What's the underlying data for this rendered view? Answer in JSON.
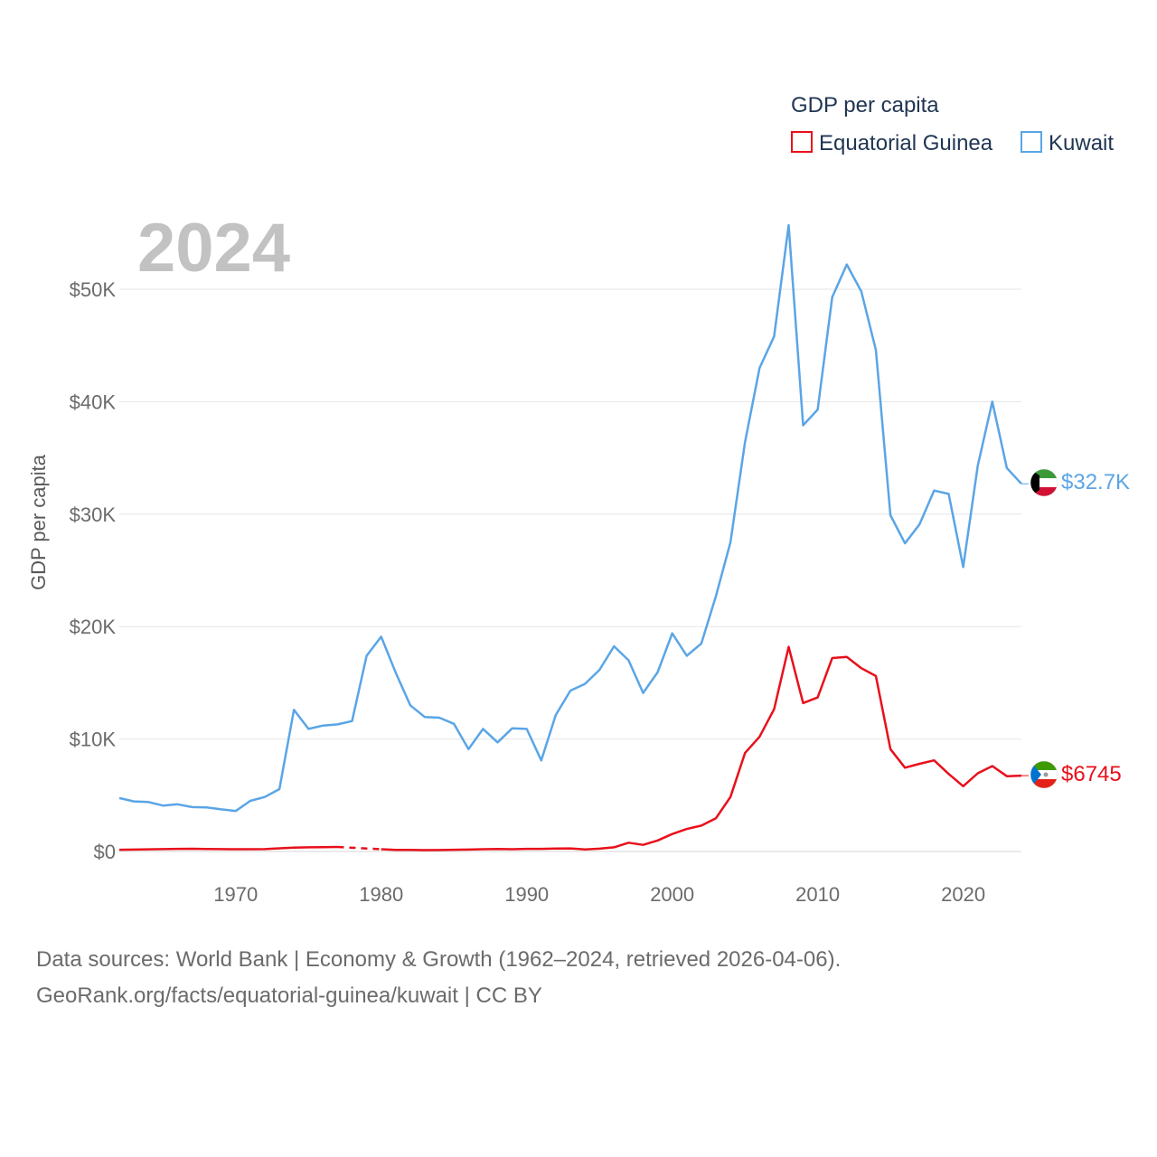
{
  "chart_data": {
    "type": "line",
    "title": "GDP per capita",
    "year_label": "2024",
    "ylabel": "GDP per capita",
    "xlabel": "",
    "xlim": [
      1962,
      2024
    ],
    "ylim": [
      0,
      56000
    ],
    "x_ticks": [
      1970,
      1980,
      1990,
      2000,
      2010,
      2020
    ],
    "y_ticks": [
      {
        "value": 0,
        "label": "$0"
      },
      {
        "value": 10000,
        "label": "$10K"
      },
      {
        "value": 20000,
        "label": "$20K"
      },
      {
        "value": 30000,
        "label": "$30K"
      },
      {
        "value": 40000,
        "label": "$40K"
      },
      {
        "value": 50000,
        "label": "$50K"
      }
    ],
    "grid": true,
    "legend_position": "top-right",
    "series": [
      {
        "name": "Equatorial Guinea",
        "color": "#e8101b",
        "end_label": "$6745",
        "flag": "equatorial-guinea-flag-icon",
        "gap": [
          1977,
          1980
        ],
        "points": [
          [
            1962,
            150
          ],
          [
            1963,
            170
          ],
          [
            1964,
            190
          ],
          [
            1965,
            210
          ],
          [
            1966,
            230
          ],
          [
            1967,
            240
          ],
          [
            1968,
            220
          ],
          [
            1969,
            210
          ],
          [
            1970,
            200
          ],
          [
            1971,
            200
          ],
          [
            1972,
            210
          ],
          [
            1973,
            280
          ],
          [
            1974,
            340
          ],
          [
            1975,
            370
          ],
          [
            1976,
            380
          ],
          [
            1977,
            400
          ],
          [
            1980,
            200
          ],
          [
            1981,
            140
          ],
          [
            1982,
            140
          ],
          [
            1983,
            120
          ],
          [
            1984,
            130
          ],
          [
            1985,
            150
          ],
          [
            1986,
            170
          ],
          [
            1987,
            200
          ],
          [
            1988,
            220
          ],
          [
            1989,
            200
          ],
          [
            1990,
            230
          ],
          [
            1991,
            230
          ],
          [
            1992,
            260
          ],
          [
            1993,
            270
          ],
          [
            1994,
            180
          ],
          [
            1995,
            250
          ],
          [
            1996,
            370
          ],
          [
            1997,
            780
          ],
          [
            1998,
            590
          ],
          [
            1999,
            980
          ],
          [
            2000,
            1550
          ],
          [
            2001,
            2000
          ],
          [
            2002,
            2300
          ],
          [
            2003,
            2950
          ],
          [
            2004,
            4850
          ],
          [
            2005,
            8750
          ],
          [
            2006,
            10200
          ],
          [
            2007,
            12650
          ],
          [
            2008,
            18200
          ],
          [
            2009,
            13200
          ],
          [
            2010,
            13700
          ],
          [
            2011,
            17200
          ],
          [
            2012,
            17300
          ],
          [
            2013,
            16300
          ],
          [
            2014,
            15600
          ],
          [
            2015,
            9100
          ],
          [
            2016,
            7450
          ],
          [
            2017,
            7800
          ],
          [
            2018,
            8100
          ],
          [
            2019,
            6900
          ],
          [
            2020,
            5800
          ],
          [
            2021,
            6950
          ],
          [
            2022,
            7600
          ],
          [
            2023,
            6700
          ],
          [
            2024,
            6745
          ]
        ]
      },
      {
        "name": "Kuwait",
        "color": "#5aa5e6",
        "end_label": "$32.7K",
        "flag": "kuwait-flag-icon",
        "points": [
          [
            1962,
            4750
          ],
          [
            1963,
            4450
          ],
          [
            1964,
            4400
          ],
          [
            1965,
            4080
          ],
          [
            1966,
            4200
          ],
          [
            1967,
            3950
          ],
          [
            1968,
            3920
          ],
          [
            1969,
            3750
          ],
          [
            1970,
            3600
          ],
          [
            1971,
            4500
          ],
          [
            1972,
            4850
          ],
          [
            1973,
            5550
          ],
          [
            1974,
            12600
          ],
          [
            1975,
            10900
          ],
          [
            1976,
            11200
          ],
          [
            1977,
            11300
          ],
          [
            1978,
            11600
          ],
          [
            1979,
            17400
          ],
          [
            1980,
            19100
          ],
          [
            1981,
            15900
          ],
          [
            1982,
            13000
          ],
          [
            1983,
            11950
          ],
          [
            1984,
            11900
          ],
          [
            1985,
            11350
          ],
          [
            1986,
            9100
          ],
          [
            1987,
            10900
          ],
          [
            1988,
            9700
          ],
          [
            1989,
            10950
          ],
          [
            1990,
            10900
          ],
          [
            1991,
            8100
          ],
          [
            1992,
            12150
          ],
          [
            1993,
            14300
          ],
          [
            1994,
            14900
          ],
          [
            1995,
            16150
          ],
          [
            1996,
            18250
          ],
          [
            1997,
            17000
          ],
          [
            1998,
            14100
          ],
          [
            1999,
            15950
          ],
          [
            2000,
            19400
          ],
          [
            2001,
            17400
          ],
          [
            2002,
            18500
          ],
          [
            2003,
            22700
          ],
          [
            2004,
            27500
          ],
          [
            2005,
            36400
          ],
          [
            2006,
            43000
          ],
          [
            2007,
            45800
          ],
          [
            2008,
            55700
          ],
          [
            2009,
            37900
          ],
          [
            2010,
            39300
          ],
          [
            2011,
            49300
          ],
          [
            2012,
            52200
          ],
          [
            2013,
            49800
          ],
          [
            2014,
            44600
          ],
          [
            2015,
            29900
          ],
          [
            2016,
            27400
          ],
          [
            2017,
            29100
          ],
          [
            2018,
            32100
          ],
          [
            2019,
            31800
          ],
          [
            2020,
            25300
          ],
          [
            2021,
            34300
          ],
          [
            2022,
            40000
          ],
          [
            2023,
            34100
          ],
          [
            2024,
            32700
          ]
        ]
      }
    ]
  },
  "footer": {
    "line1": "Data sources: World Bank | Economy & Growth (1962–2024, retrieved 2026-04-06).",
    "line2": "GeoRank.org/facts/equatorial-guinea/kuwait | CC BY"
  }
}
